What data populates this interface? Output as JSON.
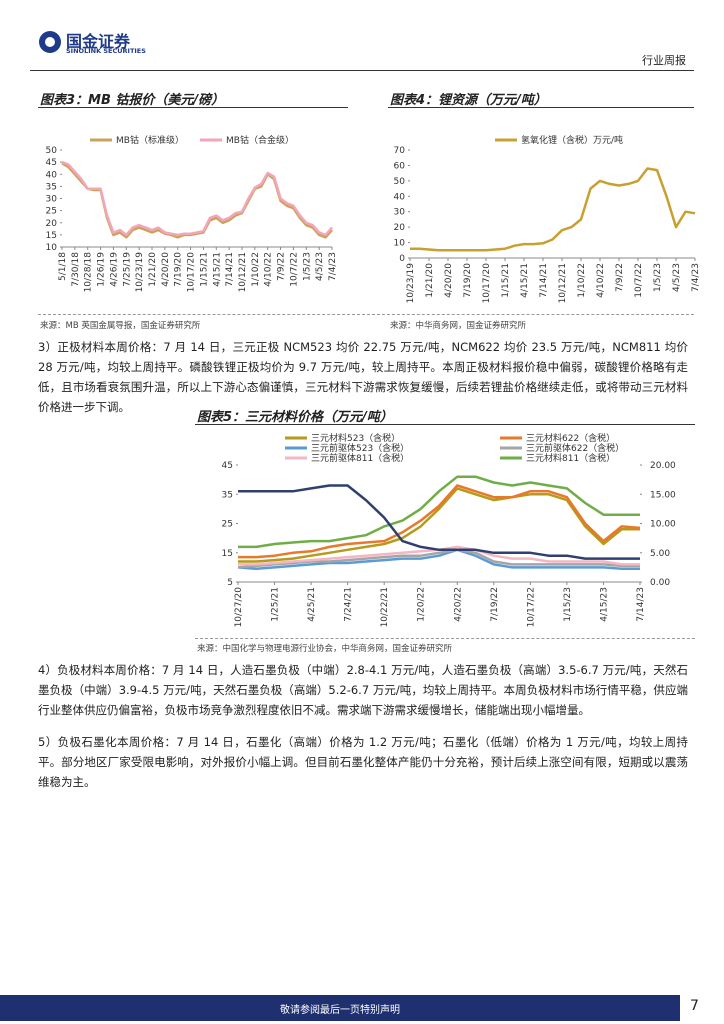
{
  "header": {
    "logo_title": "国金证券",
    "logo_subtitle": "SINOLINK SECURITIES",
    "report_type": "行业周报"
  },
  "chart_data": [
    {
      "type": "line",
      "title": "图表3：MB 钴报价（美元/磅）",
      "source": "来源：MB 英国金属导报，国金证券研究所",
      "categories": [
        "5/1/18",
        null,
        "7/30/18",
        null,
        "10/28/18",
        null,
        "1/26/19",
        null,
        "4/26/19",
        null,
        "7/25/19",
        null,
        "10/23/19",
        null,
        "1/21/20",
        null,
        "4/20/20",
        null,
        "7/19/20",
        null,
        "10/17/20",
        null,
        "1/15/21",
        null,
        "4/15/21",
        null,
        "7/14/21",
        null,
        "10/12/21",
        null,
        "1/10/22",
        null,
        "4/10/22",
        null,
        "7/9/22",
        null,
        "10/7/22",
        null,
        "1/5/23",
        null,
        "4/5/23",
        null,
        "7/4/23"
      ],
      "series": [
        {
          "name": "MB钴（标准级）",
          "color": "#c9a35c",
          "values": [
            44.5,
            43,
            40,
            37,
            34,
            33.5,
            33.5,
            22,
            15,
            16,
            14,
            17,
            18,
            17,
            16,
            17,
            15.5,
            15,
            14,
            15,
            15,
            15.5,
            16,
            21,
            22,
            20,
            21,
            23,
            24,
            29,
            34,
            35,
            40,
            38,
            29,
            27,
            26,
            22,
            19,
            18,
            15,
            14,
            17
          ]
        },
        {
          "name": "MB钴（合金级）",
          "color": "#f4a6b8",
          "values": [
            45,
            44,
            41,
            38,
            34,
            34,
            34,
            23,
            16,
            17,
            15,
            18,
            19,
            18,
            17,
            18,
            16,
            15.5,
            15,
            15.5,
            15.5,
            16,
            16.5,
            22,
            23,
            21,
            22,
            24,
            24.5,
            30,
            34.5,
            36,
            40.5,
            39,
            30,
            28,
            27,
            23,
            20,
            19,
            16,
            15,
            18
          ]
        }
      ],
      "ylim": [
        10,
        50
      ],
      "yticks": [
        10,
        15,
        20,
        25,
        30,
        35,
        40,
        45,
        50
      ]
    },
    {
      "type": "line",
      "title": "图表4：锂资源（万元/吨）",
      "source": "来源：中华商务网，国金证券研究所",
      "categories": [
        "10/23/19",
        null,
        "1/21/20",
        null,
        "4/20/20",
        null,
        "7/19/20",
        null,
        "10/17/20",
        null,
        "1/15/21",
        null,
        "4/15/21",
        null,
        "7/14/21",
        null,
        "10/12/21",
        null,
        "1/10/22",
        null,
        "4/10/22",
        null,
        "7/9/22",
        null,
        "10/7/22",
        null,
        "1/5/23",
        null,
        "4/5/23",
        null,
        "7/4/23"
      ],
      "series": [
        {
          "name": "氢氧化锂（含税）万元/吨",
          "color": "#c8a030",
          "values": [
            6,
            6,
            5.5,
            5,
            5,
            5,
            5,
            5,
            5,
            5.5,
            6,
            8,
            9,
            9,
            9.5,
            12,
            18,
            20,
            25,
            45,
            50,
            48,
            47,
            48,
            50,
            58,
            57,
            40,
            20,
            30,
            29
          ]
        }
      ],
      "ylim": [
        0,
        70
      ],
      "yticks": [
        0,
        10,
        20,
        30,
        40,
        50,
        60,
        70
      ]
    },
    {
      "type": "line",
      "title": "图表5：三元材料价格（万元/吨）",
      "source": "来源：中国化学与物理电源行业协会，中华商务网，国金证券研究所",
      "categories": [
        "10/27/20",
        null,
        "1/25/21",
        null,
        "4/25/21",
        null,
        "7/24/21",
        null,
        "10/22/21",
        null,
        "1/20/22",
        null,
        "4/20/22",
        null,
        "7/19/22",
        null,
        "10/17/22",
        null,
        "1/15/23",
        null,
        "4/15/23",
        null,
        "7/14/23"
      ],
      "series": [
        {
          "name": "三元材料523（含税）",
          "color": "#b59a1c",
          "values": [
            12,
            12,
            12.5,
            13,
            14,
            15,
            16,
            17,
            18,
            20,
            24,
            30,
            37,
            35,
            33,
            34,
            35,
            35,
            33,
            24,
            18,
            23,
            23
          ]
        },
        {
          "name": "三元材料622（含税）",
          "color": "#e8782a",
          "values": [
            13.5,
            13.5,
            14,
            15,
            15.5,
            17,
            18,
            18.5,
            19,
            22,
            26,
            31,
            38,
            36,
            34,
            34,
            36,
            36,
            34,
            25,
            19,
            24,
            23.5
          ]
        },
        {
          "name": "三元前驱体523（含税）",
          "color": "#5b9bd5",
          "values": [
            10,
            9.5,
            10,
            10.5,
            11,
            11.5,
            11.5,
            12,
            12.5,
            13,
            13,
            14,
            16,
            14,
            11,
            10,
            10,
            10,
            10,
            10,
            10,
            9.5,
            9.5
          ]
        },
        {
          "name": "三元前驱体622（含税）",
          "color": "#a5a5a5",
          "values": [
            10,
            10.5,
            11,
            11.5,
            12,
            12,
            12.5,
            13,
            13.5,
            14,
            14,
            15,
            16,
            15,
            12,
            11,
            11,
            11,
            11,
            11,
            11,
            10.5,
            10.5
          ]
        },
        {
          "name": "三元前驱体811（含税）",
          "color": "#f4b6c2",
          "values": [
            11,
            11,
            11.5,
            12,
            12.5,
            13,
            13.5,
            14,
            14.5,
            15,
            15.5,
            16,
            17,
            16,
            14,
            13,
            13,
            12,
            12,
            12,
            12,
            11,
            11
          ]
        },
        {
          "name": "三元材料811（含税）",
          "color": "#70ad47",
          "values": [
            17,
            17,
            18,
            18.5,
            19,
            19,
            20,
            21,
            24,
            26,
            30,
            36,
            41,
            41,
            39,
            38,
            39,
            38,
            37,
            32,
            28,
            28,
            28
          ]
        },
        {
          "color": "#2f3f6f",
          "axis": "y2",
          "values": [
            15.5,
            15.5,
            15.5,
            15.5,
            16,
            16.5,
            16.5,
            14,
            11,
            7,
            6,
            5.5,
            5.5,
            5.5,
            5,
            5,
            5,
            4.5,
            4.5,
            4,
            4,
            4,
            4
          ]
        }
      ],
      "ylim": [
        5,
        45
      ],
      "yticks": [
        5,
        15,
        25,
        35,
        45
      ],
      "y2lim": [
        0,
        20
      ],
      "y2ticks": [
        {
          "value": 0,
          "label": "0.00"
        },
        {
          "value": 5,
          "label": "5.00"
        },
        {
          "value": 10,
          "label": "10.00"
        },
        {
          "value": 15,
          "label": "15.00"
        },
        {
          "value": 20,
          "label": "20.00"
        }
      ]
    }
  ],
  "paragraphs": [
    "3）正极材料本周价格：7 月 14 日，三元正极 NCM523 均价 22.75 万元/吨，NCM622 均价 23.5 万元/吨，NCM811 均价 28 万元/吨，均较上周持平。磷酸铁锂正极均价为 9.7 万元/吨，较上周持平。本周正极材料报价稳中偏弱，碳酸锂价格略有走低，且市场看衰氛围升温，所以上下游心态偏谨慎，三元材料下游需求恢复缓慢，后续若锂盐价格继续走低，或将带动三元材料价格进一步下调。",
    "4）负极材料本周价格：7 月 14 日，人造石墨负极（中端）2.8-4.1 万元/吨，人造石墨负极（高端）3.5-6.7 万元/吨，天然石墨负极（中端）3.9-4.5 万元/吨，天然石墨负极（高端）5.2-6.7 万元/吨，均较上周持平。本周负极材料市场行情平稳，供应端行业整体供应仍偏富裕，负极市场竞争激烈程度依旧不减。需求端下游需求缓慢增长，储能端出现小幅增量。",
    "5）负极石墨化本周价格：7 月 14 日，石墨化（高端）价格为 1.2 万元/吨；石墨化（低端）价格为 1 万元/吨，均较上周持平。部分地区厂家受限电影响，对外报价小幅上调。但目前石墨化整体产能仍十分充裕，预计后续上涨空间有限，短期或以震荡维稳为主。"
  ],
  "footer": {
    "disclaimer": "敬请参阅最后一页特别声明",
    "page_number": "7"
  }
}
